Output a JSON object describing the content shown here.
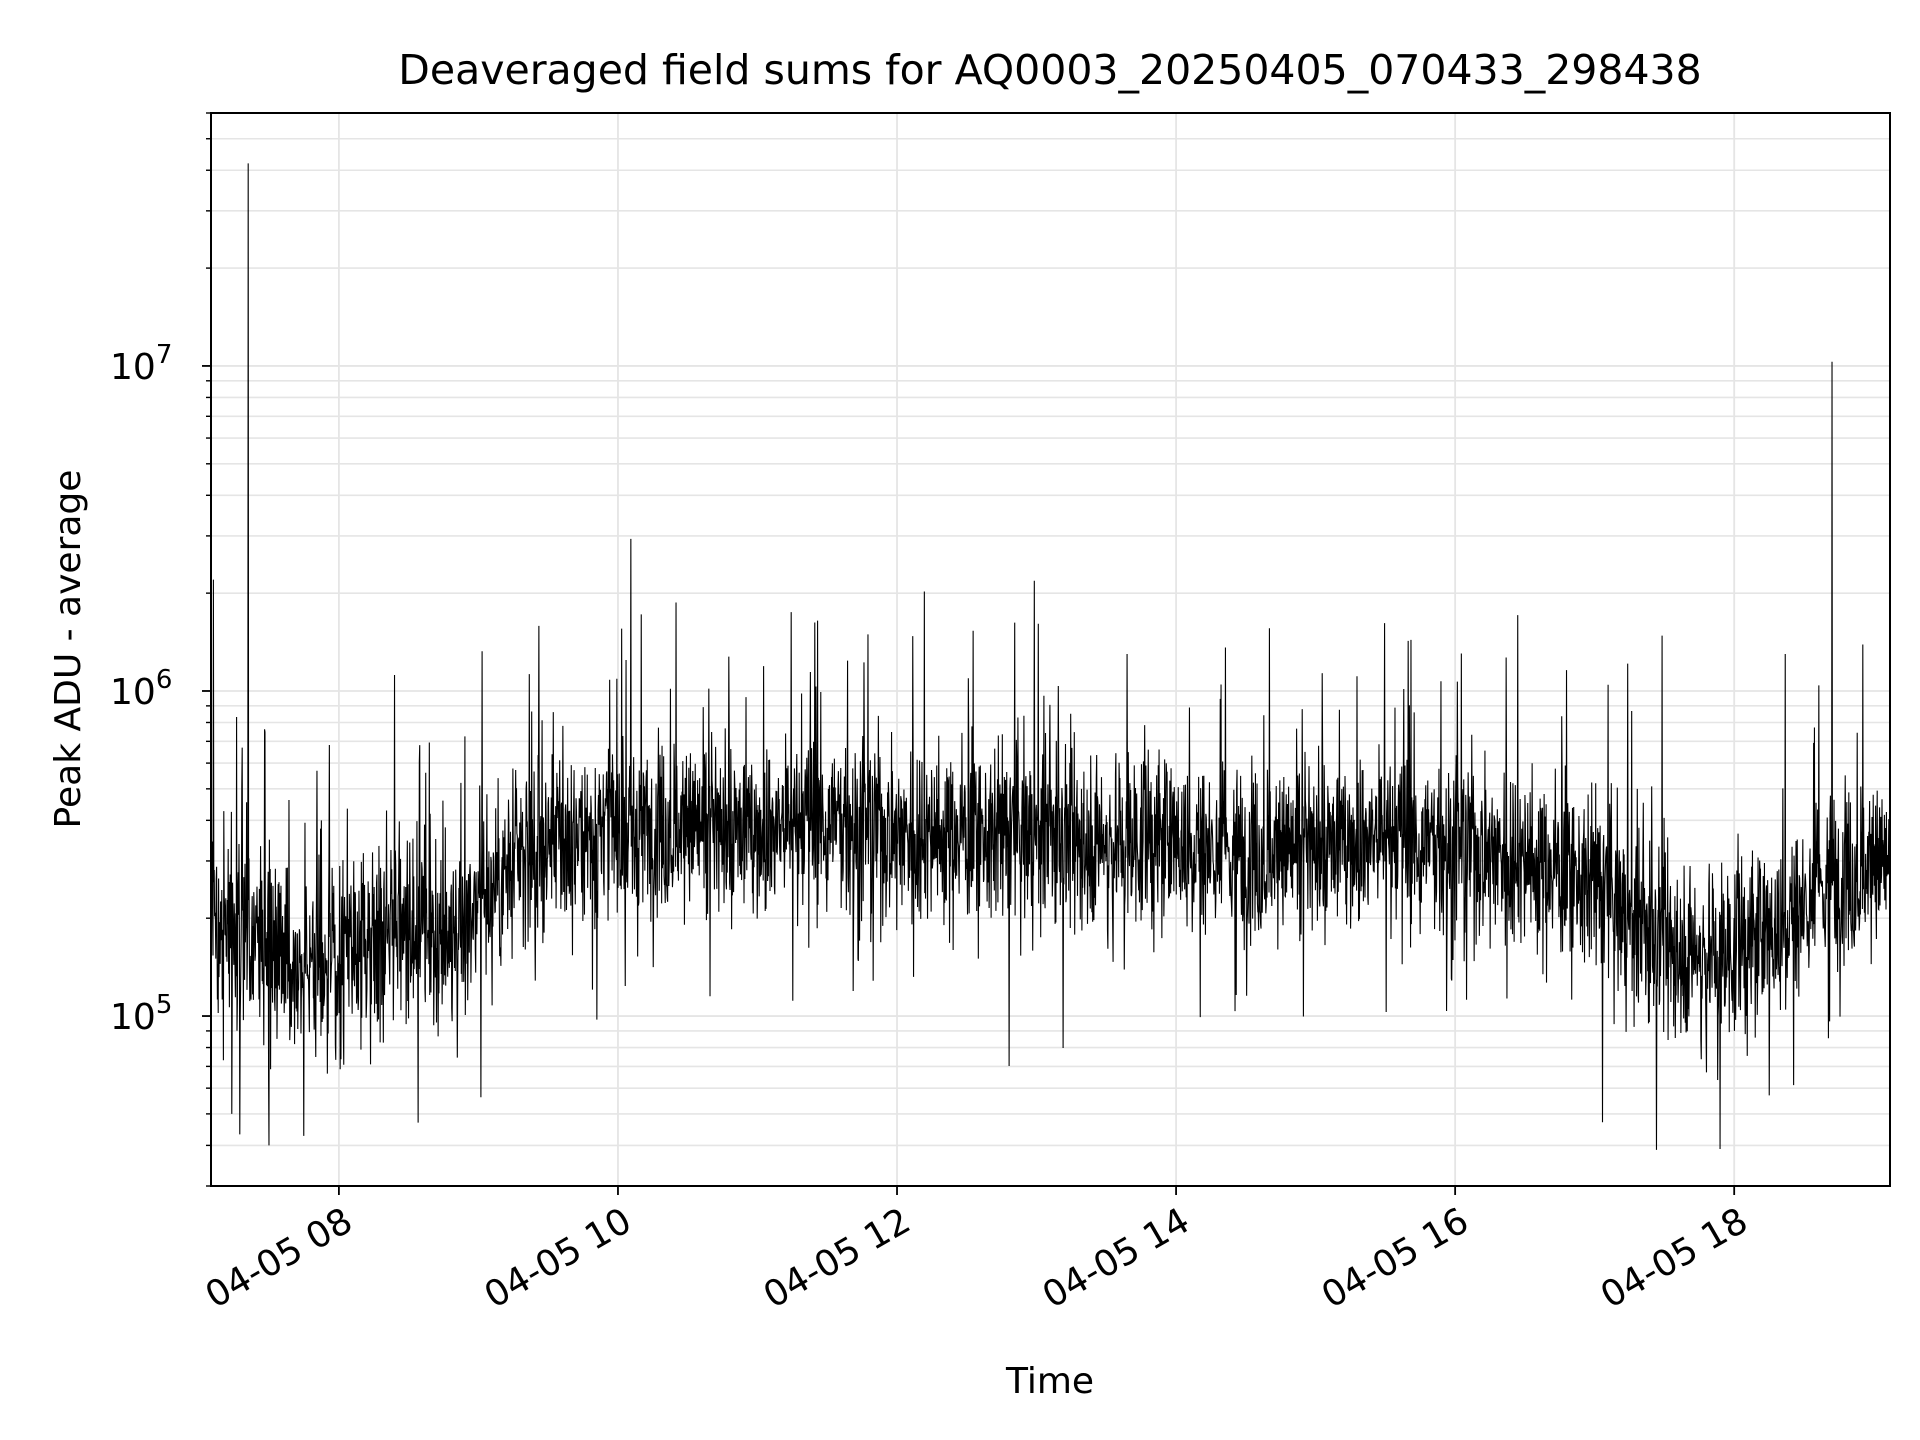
{
  "chart_data": {
    "type": "line",
    "title": "Deaveraged field sums for AQ0003_20250405_070433_298438",
    "xlabel": "Time",
    "ylabel": "Peak ADU - average",
    "y_scale": "log",
    "xlim": [
      "2025-04-05 07:05",
      "2025-04-05 19:07"
    ],
    "ylim": [
      30000,
      60000000
    ],
    "grid": true,
    "legend": "none",
    "line_color": "#000000",
    "grid_color": "#e5e5e5",
    "x_ticks": [
      {
        "at": "2025-04-05 08:00",
        "label": "04-05 08"
      },
      {
        "at": "2025-04-05 10:00",
        "label": "04-05 10"
      },
      {
        "at": "2025-04-05 12:00",
        "label": "04-05 12"
      },
      {
        "at": "2025-04-05 14:00",
        "label": "04-05 14"
      },
      {
        "at": "2025-04-05 16:00",
        "label": "04-05 16"
      },
      {
        "at": "2025-04-05 18:00",
        "label": "04-05 18"
      }
    ],
    "y_ticks": [
      {
        "value": 100000,
        "base": "10",
        "exp": "5"
      },
      {
        "value": 1000000,
        "base": "10",
        "exp": "6"
      },
      {
        "value": 10000000,
        "base": "10",
        "exp": "7"
      }
    ],
    "series": [
      {
        "x": [
          "2025-04-05 07:05",
          "2025-04-05 07:20",
          "2025-04-05 07:40",
          "2025-04-05 08:00",
          "2025-04-05 08:20",
          "2025-04-05 08:40",
          "2025-04-05 09:00",
          "2025-04-05 09:20",
          "2025-04-05 09:40",
          "2025-04-05 10:00",
          "2025-04-05 10:30",
          "2025-04-05 11:00",
          "2025-04-05 11:30",
          "2025-04-05 12:00",
          "2025-04-05 12:30",
          "2025-04-05 13:00",
          "2025-04-05 13:30",
          "2025-04-05 14:00",
          "2025-04-05 14:30",
          "2025-04-05 15:00",
          "2025-04-05 15:30",
          "2025-04-05 16:00",
          "2025-04-05 16:30",
          "2025-04-05 17:00",
          "2025-04-05 17:20",
          "2025-04-05 17:40",
          "2025-04-05 18:00",
          "2025-04-05 18:20",
          "2025-04-05 18:40",
          "2025-04-05 19:07"
        ],
        "y": [
          200000,
          180000,
          150000,
          140000,
          200000,
          150000,
          230000,
          310000,
          360000,
          380000,
          380000,
          370000,
          410000,
          370000,
          370000,
          360000,
          350000,
          350000,
          310000,
          330000,
          360000,
          340000,
          310000,
          260000,
          180000,
          160000,
          160000,
          190000,
          260000,
          300000
        ],
        "spikes": [
          {
            "x": "2025-04-05 07:06",
            "y": 2200000
          },
          {
            "x": "2025-04-05 07:21",
            "y": 42000000
          },
          {
            "x": "2025-04-05 08:24",
            "y": 1120000
          },
          {
            "x": "2025-04-05 13:39",
            "y": 1300000
          },
          {
            "x": "2025-04-05 17:29",
            "y": 1480000
          },
          {
            "x": "2025-04-05 18:22",
            "y": 1300000
          },
          {
            "x": "2025-04-05 18:42",
            "y": 10300000
          }
        ],
        "dips": [
          {
            "x": "2025-04-05 07:14",
            "y": 50000
          },
          {
            "x": "2025-04-05 07:30",
            "y": 40000
          },
          {
            "x": "2025-04-05 08:34",
            "y": 47000
          },
          {
            "x": "2025-04-05 17:54",
            "y": 39000
          },
          {
            "x": "2025-04-05 18:15",
            "y": 57000
          }
        ]
      }
    ]
  }
}
